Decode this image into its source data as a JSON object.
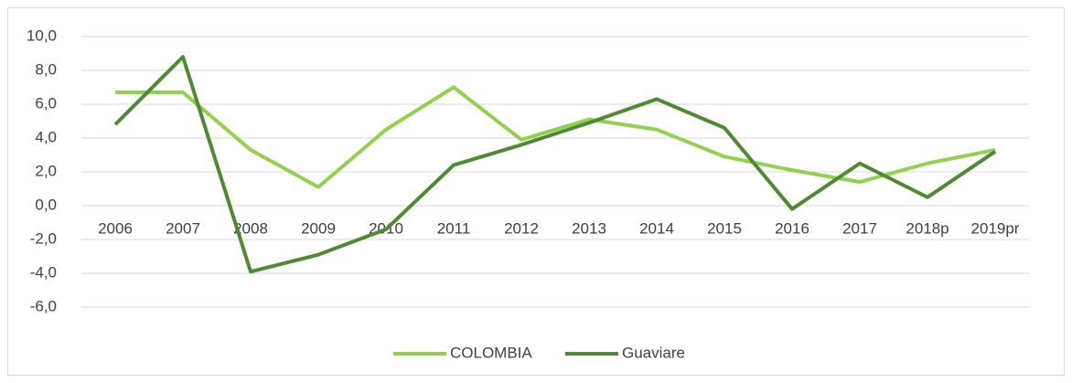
{
  "chart_data": {
    "type": "line",
    "categories": [
      "2006",
      "2007",
      "2008",
      "2009",
      "2010",
      "2011",
      "2012",
      "2013",
      "2014",
      "2015",
      "2016",
      "2017",
      "2018p",
      "2019pr"
    ],
    "series": [
      {
        "name": "COLOMBIA",
        "color": "#92d050",
        "values": [
          6.7,
          6.7,
          3.3,
          1.1,
          4.5,
          7.0,
          3.9,
          5.1,
          4.5,
          2.9,
          2.1,
          1.4,
          2.5,
          3.3
        ]
      },
      {
        "name": "Guaviare",
        "color": "#4e8a33",
        "values": [
          4.8,
          8.8,
          -3.9,
          -2.9,
          -1.4,
          2.4,
          3.6,
          4.9,
          6.3,
          4.6,
          -0.2,
          2.5,
          0.5,
          3.2
        ]
      }
    ],
    "ylim": [
      -6,
      10
    ],
    "yticks": [
      {
        "value": -6,
        "label": "-6,0"
      },
      {
        "value": -4,
        "label": "-4,0"
      },
      {
        "value": -2,
        "label": "-2,0"
      },
      {
        "value": 0,
        "label": "0,0"
      },
      {
        "value": 2,
        "label": "2,0"
      },
      {
        "value": 4,
        "label": "4,0"
      },
      {
        "value": 6,
        "label": "6,0"
      },
      {
        "value": 8,
        "label": "8,0"
      },
      {
        "value": 10,
        "label": "10,0"
      }
    ],
    "grid": true,
    "legend": "bottom"
  }
}
